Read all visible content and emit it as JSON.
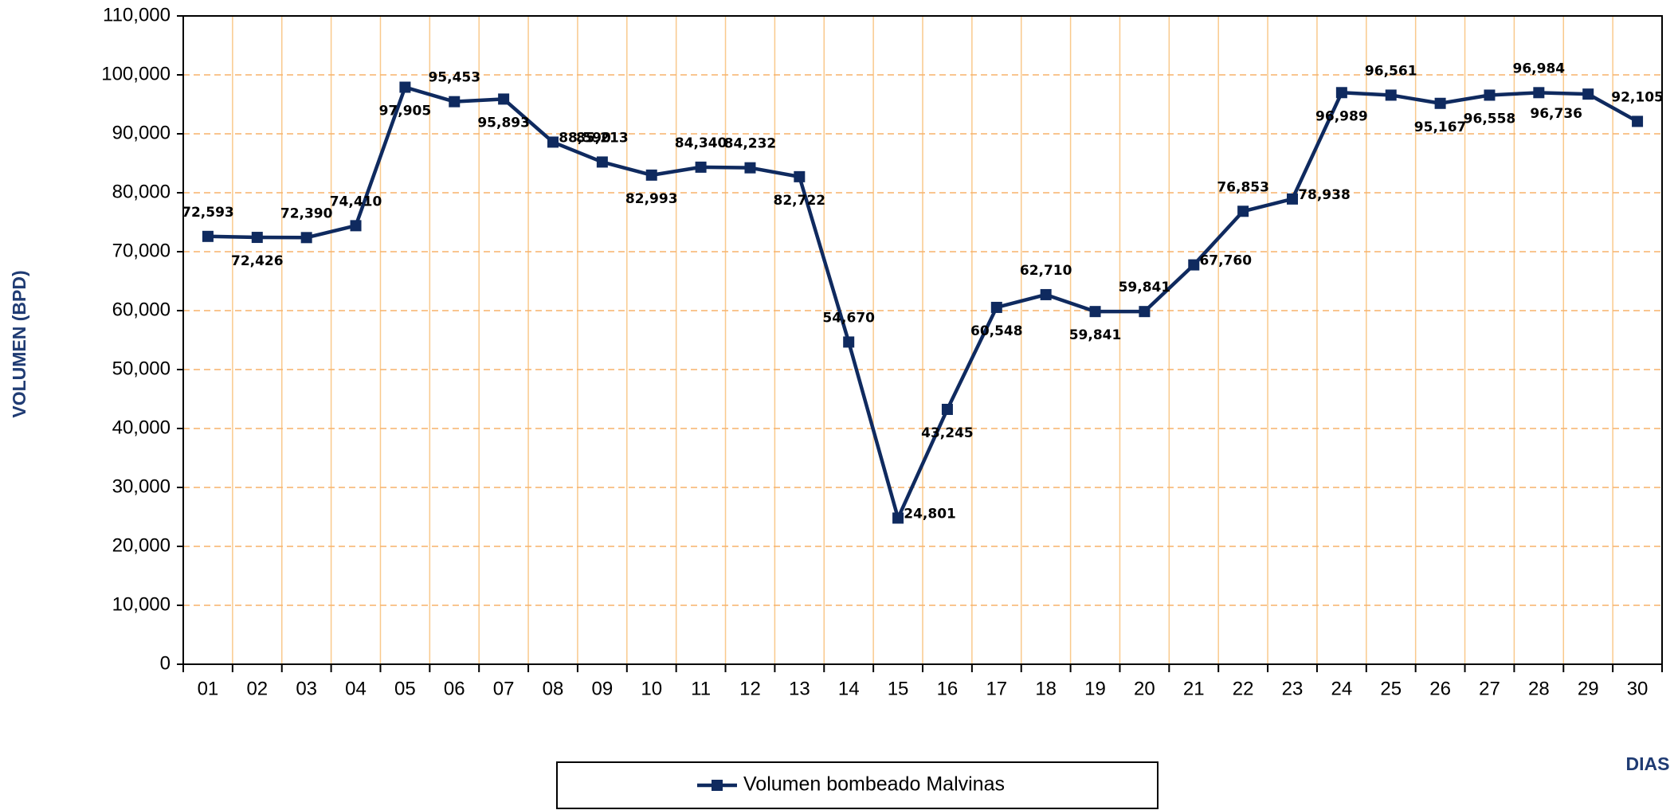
{
  "chart_data": {
    "type": "line",
    "y_label": "VOLUMEN (BPD)",
    "x_label": "DIAS",
    "categories": [
      "01",
      "02",
      "03",
      "04",
      "05",
      "06",
      "07",
      "08",
      "09",
      "10",
      "11",
      "12",
      "13",
      "14",
      "15",
      "16",
      "17",
      "18",
      "19",
      "20",
      "21",
      "22",
      "23",
      "24",
      "25",
      "26",
      "27",
      "28",
      "29",
      "30"
    ],
    "series": [
      {
        "name": "Volumen bombeado Malvinas",
        "color": "#0f2a5f",
        "values": [
          72593,
          72426,
          72390,
          74410,
          97905,
          95453,
          95893,
          88590,
          85213,
          82993,
          84340,
          84232,
          82722,
          54670,
          24801,
          43245,
          60548,
          62710,
          59841,
          59841,
          67760,
          76853,
          78938,
          96989,
          96561,
          95167,
          96558,
          96984,
          96736,
          92105
        ],
        "value_labels": [
          "72,593",
          "72,426",
          "72,390",
          "74,410",
          "97,905",
          "95,453",
          "95,893",
          "88,590",
          "85,213",
          "82,993",
          "84,340",
          "84,232",
          "82,722",
          "54,670",
          "24,801",
          "43,245",
          "60,548",
          "62,710",
          "59,841",
          "59,841",
          "67,760",
          "76,853",
          "78,938",
          "96,989",
          "96,561",
          "95,167",
          "96,558",
          "96,984",
          "96,736",
          "92,105"
        ]
      }
    ],
    "ylim": [
      0,
      110000
    ],
    "yticks": [
      0,
      {
        "value": 10000,
        "label": "10,000"
      },
      {
        "value": 20000,
        "label": "20,000"
      },
      {
        "value": 30000,
        "label": "30,000"
      },
      {
        "value": 40000,
        "label": "40,000"
      },
      {
        "value": 50000,
        "label": "50,000"
      },
      {
        "value": 60000,
        "label": "60,000"
      },
      {
        "value": 70000,
        "label": "70,000"
      },
      {
        "value": 80000,
        "label": "80,000"
      },
      {
        "value": 90000,
        "label": "90,000"
      },
      {
        "value": 100000,
        "label": "100,000"
      },
      {
        "value": 110000,
        "label": "110,000"
      }
    ],
    "grid": true
  }
}
